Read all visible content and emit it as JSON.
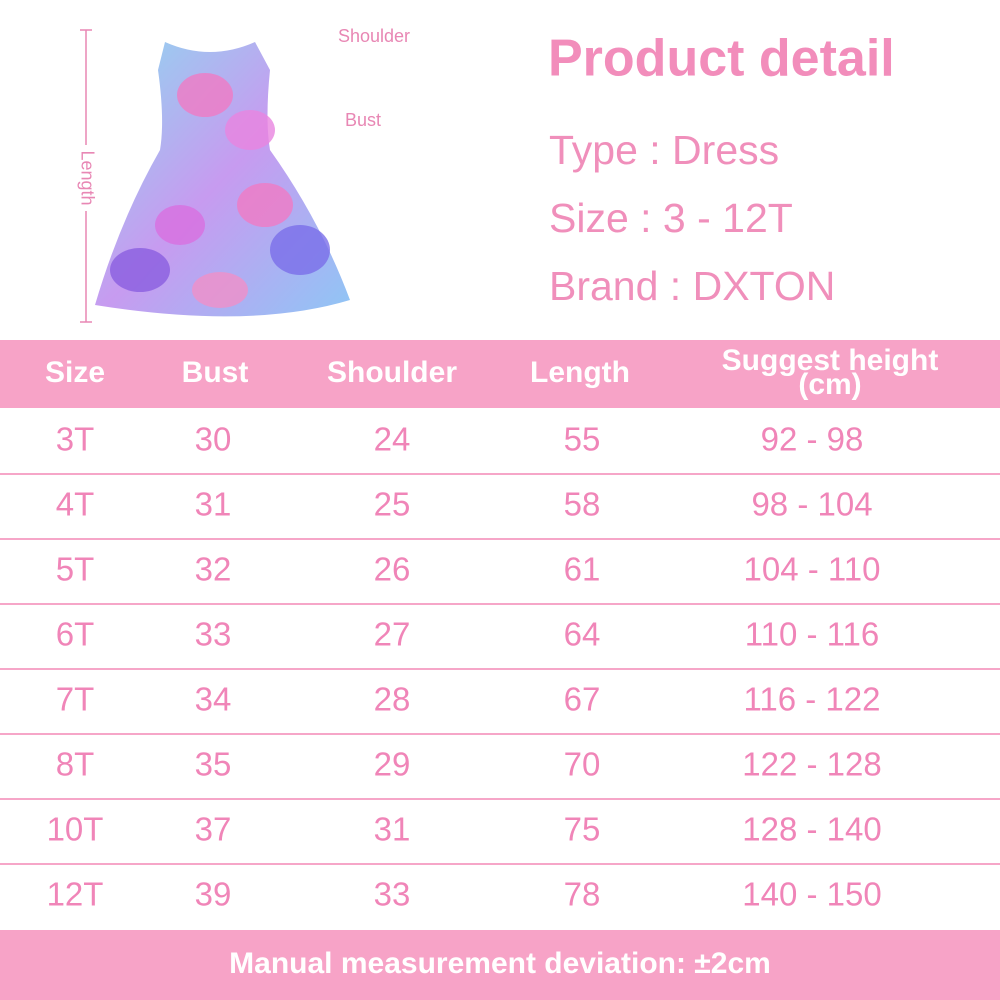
{
  "image": {
    "labels": {
      "shoulder": "Shoulder",
      "bust": "Bust",
      "length": "Length"
    }
  },
  "header": {
    "title": "Product detail",
    "details": [
      "Type : Dress",
      "Size : 3 - 12T",
      "Brand : DXTON"
    ]
  },
  "table": {
    "columns": [
      "Size",
      "Bust",
      "Shoulder",
      "Length",
      "Suggest height\n(cm)"
    ],
    "rows": [
      [
        "3T",
        "30",
        "24",
        "55",
        "92 - 98"
      ],
      [
        "4T",
        "31",
        "25",
        "58",
        "98 - 104"
      ],
      [
        "5T",
        "32",
        "26",
        "61",
        "104 - 110"
      ],
      [
        "6T",
        "33",
        "27",
        "64",
        "110 - 116"
      ],
      [
        "7T",
        "34",
        "28",
        "67",
        "116 - 122"
      ],
      [
        "8T",
        "35",
        "29",
        "70",
        "122 - 128"
      ],
      [
        "10T",
        "37",
        "31",
        "75",
        "128 - 140"
      ],
      [
        "12T",
        "39",
        "33",
        "78",
        "140 - 150"
      ]
    ]
  },
  "footer": {
    "note": "Manual measurement deviation: ±2cm"
  }
}
